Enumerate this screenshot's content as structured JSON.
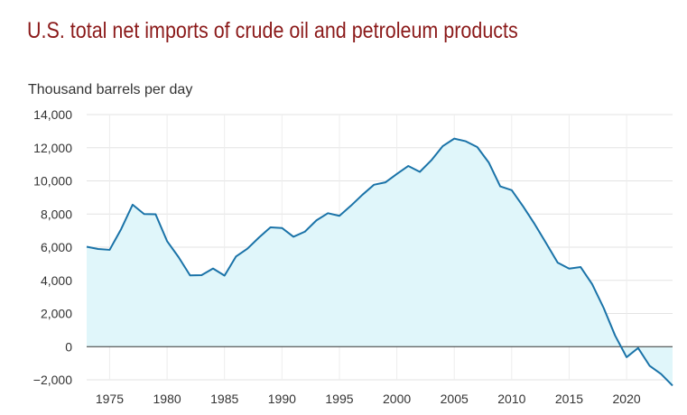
{
  "chart_data": {
    "type": "area",
    "title": "U.S. total net imports of crude oil and petroleum products",
    "ylabel": "Thousand barrels per day",
    "xlabel": "",
    "xlim": [
      1973,
      2024
    ],
    "ylim": [
      -2000,
      14000
    ],
    "grid": true,
    "legend": "none",
    "line_color": "#1a73a8",
    "fill_color": "#e0f6fa",
    "zero_line_color": "#333333",
    "x_ticks": [
      1975,
      1980,
      1985,
      1990,
      1995,
      2000,
      2005,
      2010,
      2015,
      2020
    ],
    "x_tick_labels": [
      "1975",
      "1980",
      "1985",
      "1990",
      "1995",
      "2000",
      "2005",
      "2010",
      "2015",
      "2020"
    ],
    "y_ticks": [
      -2000,
      0,
      2000,
      4000,
      6000,
      8000,
      10000,
      12000,
      14000
    ],
    "y_tick_labels": [
      "−2,000",
      "0",
      "2,000",
      "4,000",
      "6,000",
      "8,000",
      "10,000",
      "12,000",
      "14,000"
    ],
    "x": [
      1973,
      1974,
      1975,
      1976,
      1977,
      1978,
      1979,
      1980,
      1981,
      1982,
      1983,
      1984,
      1985,
      1986,
      1987,
      1988,
      1989,
      1990,
      1991,
      1992,
      1993,
      1994,
      1995,
      1996,
      1997,
      1998,
      1999,
      2000,
      2001,
      2002,
      2003,
      2004,
      2005,
      2006,
      2007,
      2008,
      2009,
      2010,
      2011,
      2012,
      2013,
      2014,
      2015,
      2016,
      2017,
      2018,
      2019,
      2020,
      2021,
      2022,
      2023,
      2024
    ],
    "values": [
      6025,
      5890,
      5840,
      7090,
      8565,
      8000,
      7985,
      6365,
      5400,
      4300,
      4310,
      4715,
      4285,
      5440,
      5915,
      6585,
      7200,
      7160,
      6630,
      6940,
      7620,
      8050,
      7890,
      8500,
      9160,
      9765,
      9910,
      10420,
      10900,
      10545,
      11240,
      12100,
      12550,
      12390,
      12040,
      11110,
      9670,
      9440,
      8450,
      7390,
      6240,
      5070,
      4710,
      4800,
      3770,
      2340,
      670,
      -635,
      -80,
      -1150,
      -1650,
      -2350
    ]
  }
}
